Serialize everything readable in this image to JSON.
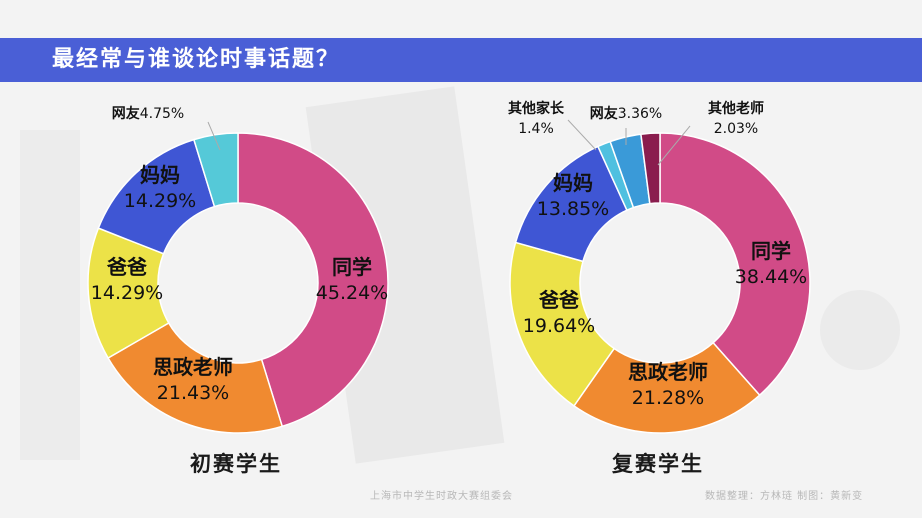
{
  "header": {
    "title": "最经常与谁谈论时事话题？"
  },
  "footer": {
    "organizer": "上海市中学生时政大赛组委会",
    "credits": "数据整理：方林琏   制图：黄新变"
  },
  "colors": {
    "title_bar": "#4a5fd6",
    "同学": "#d14b87",
    "思政老师": "#f08a30",
    "爸爸": "#ece248",
    "妈妈": "#3f56d4",
    "网友": "#55c9d8",
    "其他家长": "#4fc0e0",
    "网友2": "#3a9ad8",
    "其他老师": "#8a1d4e"
  },
  "chart_data": [
    {
      "type": "pie",
      "title": "初赛学生",
      "slices": [
        {
          "label": "同学",
          "value": 45.24,
          "value_text": "45.24%"
        },
        {
          "label": "思政老师",
          "value": 21.43,
          "value_text": "21.43%"
        },
        {
          "label": "爸爸",
          "value": 14.29,
          "value_text": "14.29%"
        },
        {
          "label": "妈妈",
          "value": 14.29,
          "value_text": "14.29%"
        },
        {
          "label": "网友",
          "value": 4.75,
          "value_text": "4.75%"
        }
      ]
    },
    {
      "type": "pie",
      "title": "复赛学生",
      "slices": [
        {
          "label": "同学",
          "value": 38.44,
          "value_text": "38.44%"
        },
        {
          "label": "思政老师",
          "value": 21.28,
          "value_text": "21.28%"
        },
        {
          "label": "爸爸",
          "value": 19.64,
          "value_text": "19.64%"
        },
        {
          "label": "妈妈",
          "value": 13.85,
          "value_text": "13.85%"
        },
        {
          "label": "其他家长",
          "value": 1.4,
          "value_text": "1.4%"
        },
        {
          "label": "网友",
          "value": 3.36,
          "value_text": "3.36%"
        },
        {
          "label": "其他老师",
          "value": 2.03,
          "value_text": "2.03%"
        }
      ]
    }
  ]
}
